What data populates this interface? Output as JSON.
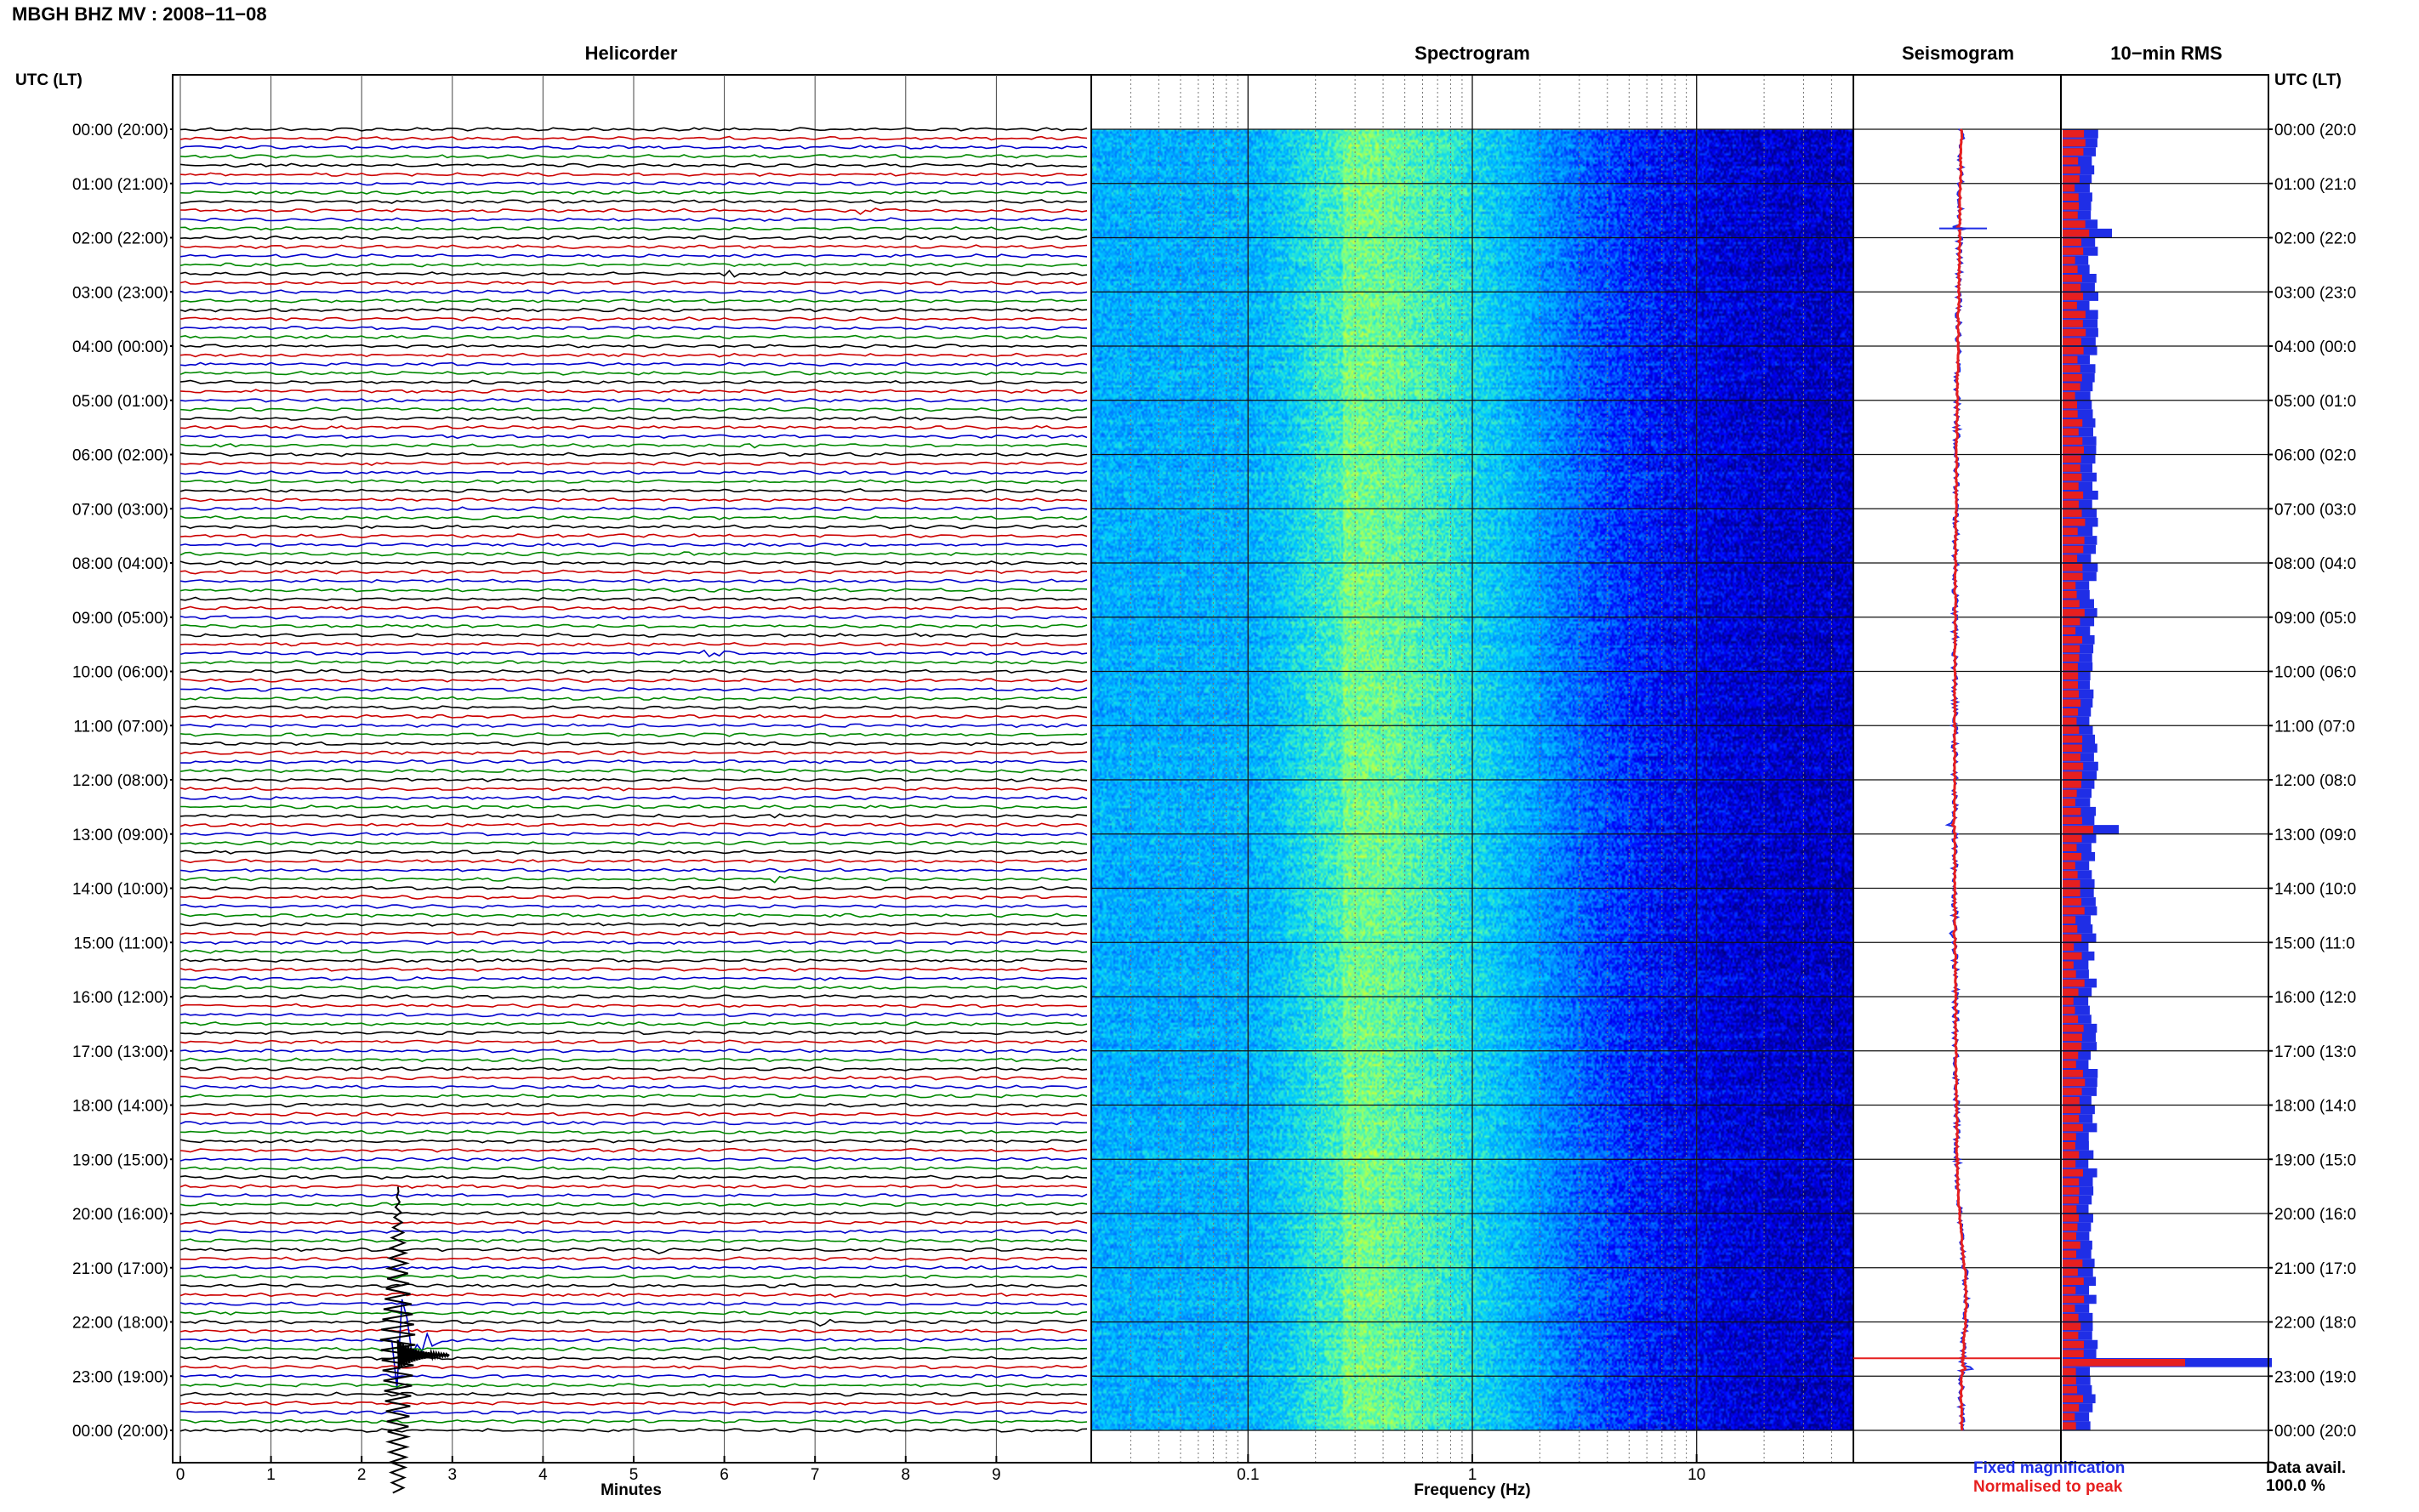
{
  "figure": {
    "title": "MBGH BHZ MV : 2008−11−08",
    "utc_header_left": "UTC (LT)",
    "utc_header_right": "UTC (LT)"
  },
  "panels": {
    "helicorder": {
      "title": "Helicorder",
      "xlabel": "Minutes",
      "trace_colors": [
        "#000000",
        "#cc0000",
        "#0000cc",
        "#008800"
      ]
    },
    "spectrogram": {
      "title": "Spectrogram",
      "xlabel": "Frequency (Hz)",
      "x_scale": "log",
      "x_range_hz": [
        0.02,
        50
      ],
      "colormap": [
        "#00007f",
        "#0000ff",
        "#0080ff",
        "#00d0ff",
        "#60ffa0",
        "#d0ff30"
      ]
    },
    "seismogram": {
      "title": "Seismogram",
      "legend": [
        {
          "label": "Fixed magnification",
          "color": "#1f2ee6"
        },
        {
          "label": "Normalised to peak",
          "color": "#e61f1f"
        }
      ]
    },
    "rms": {
      "title": "10−min RMS",
      "data_avail_label": "Data avail.",
      "data_avail_value": "100.0 %"
    }
  },
  "chart_data": {
    "type": "heatmap",
    "title": "MBGH BHZ MV : 2008−11−08",
    "y_axis": {
      "label": "UTC (LT)",
      "range_hours": [
        0,
        24
      ],
      "tick_labels_left": [
        "00:00 (20:00)",
        "01:00 (21:00)",
        "02:00 (22:00)",
        "03:00 (23:00)",
        "04:00 (00:00)",
        "05:00 (01:00)",
        "06:00 (02:00)",
        "07:00 (03:00)",
        "08:00 (04:00)",
        "09:00 (05:00)",
        "10:00 (06:00)",
        "11:00 (07:00)",
        "12:00 (08:00)",
        "13:00 (09:00)",
        "14:00 (10:00)",
        "15:00 (11:00)",
        "16:00 (12:00)",
        "17:00 (13:00)",
        "18:00 (14:00)",
        "19:00 (15:00)",
        "20:00 (16:00)",
        "21:00 (17:00)",
        "22:00 (18:00)",
        "23:00 (19:00)",
        "00:00 (20:00)"
      ],
      "tick_labels_right": [
        "00:00 (20:0",
        "01:00 (21:0",
        "02:00 (22:0",
        "03:00 (23:0",
        "04:00 (00:0",
        "05:00 (01:0",
        "06:00 (02:0",
        "07:00 (03:0",
        "08:00 (04:0",
        "09:00 (05:0",
        "10:00 (06:0",
        "11:00 (07:0",
        "12:00 (08:0",
        "13:00 (09:0",
        "14:00 (10:0",
        "15:00 (11:0",
        "16:00 (12:0",
        "17:00 (13:0",
        "18:00 (14:0",
        "19:00 (15:0",
        "20:00 (16:0",
        "21:00 (17:0",
        "22:00 (18:0",
        "23:00 (19:0",
        "00:00 (20:0"
      ]
    },
    "helicorder": {
      "xlabel": "Minutes",
      "x_range": [
        0,
        10
      ],
      "x_ticks": [
        "0",
        "1",
        "2",
        "3",
        "4",
        "5",
        "6",
        "7",
        "8",
        "9"
      ],
      "lines_per_hour": 6,
      "line_count": 144,
      "events": [
        {
          "hour": 1.5,
          "minute": 7.5,
          "amplitude": 0.9
        },
        {
          "hour": 2.67,
          "minute": 6.0,
          "amplitude": 0.35
        },
        {
          "hour": 5.83,
          "minute": 0.4,
          "amplitude": 0.3
        },
        {
          "hour": 5.83,
          "minute": 6.2,
          "amplitude": 0.3
        },
        {
          "hour": 6.67,
          "minute": 9.2,
          "amplitude": 0.25
        },
        {
          "hour": 7.83,
          "minute": 5.6,
          "amplitude": 0.35
        },
        {
          "hour": 9.67,
          "minute": 5.8,
          "amplitude": 0.35
        },
        {
          "hour": 13.83,
          "minute": 6.6,
          "amplitude": 0.45
        },
        {
          "hour": 12.67,
          "minute": 6.5,
          "amplitude": 0.3
        },
        {
          "hour": 20.67,
          "minute": 5.3,
          "amplitude": 0.3
        },
        {
          "hour": 21.5,
          "minute": 7.0,
          "amplitude": 0.3
        },
        {
          "hour": 22.0,
          "minute": 7.1,
          "amplitude": 0.35
        },
        {
          "hour": 22.33,
          "minute": 2.4,
          "amplitude": 4.5
        }
      ]
    },
    "spectrogram": {
      "xlabel": "Frequency (Hz)",
      "x_scale": "log",
      "x_range": [
        0.02,
        50
      ],
      "x_ticks": [
        "0.1",
        "1",
        "10"
      ],
      "peak_band_hz": [
        0.2,
        0.35
      ]
    },
    "seismogram": {
      "legend": [
        "Fixed magnification",
        "Normalised to peak"
      ],
      "spikes_hour": [
        1.83,
        12.83,
        14.83,
        22.83
      ]
    },
    "rms_10min": {
      "peaks_hour": [
        1.83,
        12.83,
        22.67
      ],
      "data_availability_percent": 100.0
    }
  }
}
